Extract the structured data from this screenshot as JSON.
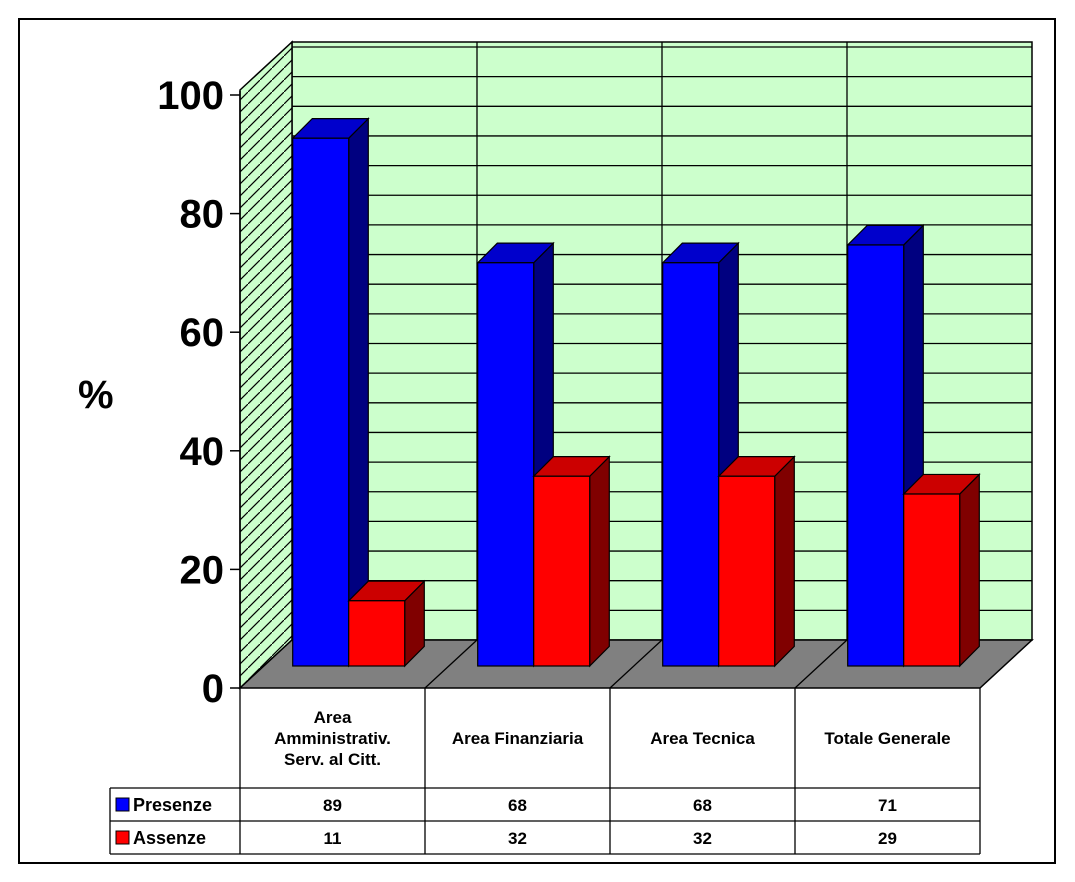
{
  "chart_data": {
    "type": "bar",
    "title": "",
    "xlabel": "",
    "ylabel": "%",
    "ylim": [
      0,
      100
    ],
    "yticks": [
      0,
      20,
      40,
      60,
      80,
      100
    ],
    "grid": true,
    "style": "3d-clustered-column-with-data-table",
    "categories": [
      [
        "Area",
        "Amministrativ.",
        "Serv. al Citt."
      ],
      [
        "Area Finanziaria"
      ],
      [
        "Area Tecnica"
      ],
      [
        "Totale Generale"
      ]
    ],
    "series": [
      {
        "name": "Presenze",
        "values": [
          89,
          68,
          68,
          71
        ],
        "color": "#0000ff"
      },
      {
        "name": "Assenze",
        "values": [
          11,
          32,
          32,
          29
        ],
        "color": "#ff0000"
      }
    ],
    "colors": {
      "wall": "#ccffcc",
      "floor": "#808080",
      "presenze_top": "#0000cc",
      "presenze_side": "#000080",
      "assenze_top": "#cc0000",
      "assenze_side": "#800000"
    }
  }
}
